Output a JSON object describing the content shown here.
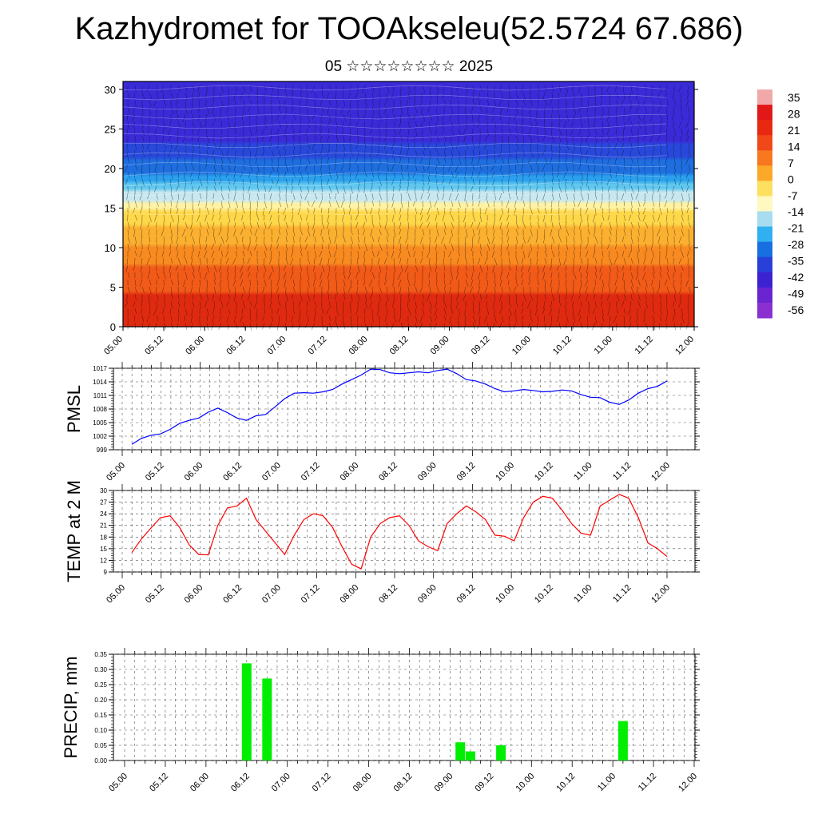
{
  "title": "Kazhydromet for TOOAkseleu(52.5724 67.686)",
  "subtitle": "05 ☆☆☆☆☆☆☆☆ 2025",
  "time_labels": [
    "05.00",
    "05.12",
    "06.00",
    "06.12",
    "07.00",
    "07.12",
    "08.00",
    "08.12",
    "09.00",
    "09.12",
    "10.00",
    "10.12",
    "11.00",
    "11.12",
    "12.00"
  ],
  "colorbar": {
    "labels": [
      "35",
      "28",
      "21",
      "14",
      "7",
      "0",
      "-7",
      "-14",
      "-21",
      "-28",
      "-35",
      "-42",
      "-49",
      "-56"
    ],
    "colors": [
      "#f2a8a8",
      "#e01818",
      "#e82810",
      "#f04818",
      "#f87820",
      "#fca828",
      "#fde060",
      "#fff8c0",
      "#a8dcf0",
      "#30b0f0",
      "#1870e0",
      "#2840d8",
      "#3c22d0",
      "#6a24d0",
      "#8a30d0"
    ]
  },
  "chart_data": [
    {
      "type": "heatmap",
      "title": "",
      "xlabel": "",
      "ylabel": "",
      "x": [
        "05.00",
        "05.12",
        "06.00",
        "06.12",
        "07.00",
        "07.12",
        "08.00",
        "08.12",
        "09.00",
        "09.12",
        "10.00",
        "10.12",
        "11.00",
        "11.12",
        "12.00"
      ],
      "ylim": [
        0,
        31
      ],
      "yticks": [
        0,
        5,
        10,
        15,
        20,
        25,
        30
      ],
      "description_values": "temperature by level, red near 0-10 (~20 to 35), yellow near 15, blue above 20 (to -56)",
      "levels": [
        0,
        5,
        10,
        15,
        20,
        25,
        30
      ],
      "temperature_profile": [
        28,
        24,
        12,
        -5,
        -35,
        -52,
        -50
      ]
    },
    {
      "type": "line",
      "title": "",
      "ylabel": "PMSL",
      "xlabel": "",
      "ylim": [
        999,
        1017
      ],
      "yticks": [
        999,
        1002,
        1005,
        1008,
        1011,
        1014,
        1017
      ],
      "x": [
        "05.00",
        "05.03",
        "05.06",
        "05.09",
        "05.12",
        "05.15",
        "05.18",
        "05.21",
        "06.00",
        "06.03",
        "06.06",
        "06.09",
        "06.12",
        "06.15",
        "06.18",
        "06.21",
        "07.00",
        "07.03",
        "07.06",
        "07.09",
        "07.12",
        "07.15",
        "07.18",
        "07.21",
        "08.00",
        "08.03",
        "08.06",
        "08.09",
        "08.12",
        "08.15",
        "08.18",
        "08.21",
        "09.00",
        "09.03",
        "09.06",
        "09.09",
        "09.12",
        "09.15",
        "09.18",
        "09.21",
        "10.00",
        "10.03",
        "10.06",
        "10.09",
        "10.12",
        "10.15",
        "10.18",
        "10.21",
        "11.00",
        "11.03",
        "11.06",
        "11.09",
        "11.12",
        "11.15",
        "11.18",
        "11.21",
        "12.00"
      ],
      "series": [
        {
          "name": "",
          "color": "#0000ff",
          "values": [
            1000.2,
            1001.5,
            1002.2,
            1002.5,
            1003.5,
            1004.8,
            1005.5,
            1006.0,
            1007.3,
            1008.2,
            1007.2,
            1006.0,
            1005.5,
            1006.5,
            1006.8,
            1008.5,
            1010.3,
            1011.5,
            1011.6,
            1011.5,
            1011.8,
            1012.3,
            1013.5,
            1014.5,
            1015.5,
            1016.8,
            1016.7,
            1016.0,
            1015.8,
            1016.0,
            1016.2,
            1016.0,
            1016.5,
            1016.8,
            1015.8,
            1014.5,
            1014.2,
            1013.5,
            1012.5,
            1011.8,
            1012.0,
            1012.3,
            1012.1,
            1011.8,
            1011.9,
            1012.2,
            1012.0,
            1011.2,
            1010.6,
            1010.5,
            1009.5,
            1009.0,
            1010.0,
            1011.5,
            1012.5,
            1013.0,
            1014.2
          ]
        }
      ]
    },
    {
      "type": "line",
      "title": "",
      "ylabel": "TEMP at 2 M",
      "xlabel": "",
      "ylim": [
        9,
        30
      ],
      "yticks": [
        9,
        12,
        15,
        18,
        21,
        24,
        27,
        30
      ],
      "x": [
        "05.00",
        "05.03",
        "05.06",
        "05.09",
        "05.12",
        "05.15",
        "05.18",
        "05.21",
        "06.00",
        "06.03",
        "06.06",
        "06.09",
        "06.12",
        "06.15",
        "06.18",
        "06.21",
        "07.00",
        "07.03",
        "07.06",
        "07.09",
        "07.12",
        "07.15",
        "07.18",
        "07.21",
        "08.00",
        "08.03",
        "08.06",
        "08.09",
        "08.12",
        "08.15",
        "08.18",
        "08.21",
        "09.00",
        "09.03",
        "09.06",
        "09.09",
        "09.12",
        "09.15",
        "09.18",
        "09.21",
        "10.00",
        "10.03",
        "10.06",
        "10.09",
        "10.12",
        "10.15",
        "10.18",
        "10.21",
        "11.00",
        "11.03",
        "11.06",
        "11.09",
        "11.12",
        "11.15",
        "11.18",
        "11.21",
        "12.00"
      ],
      "series": [
        {
          "name": "",
          "color": "#ff0000",
          "values": [
            14.0,
            17.5,
            20.3,
            23.0,
            23.5,
            20.5,
            16.0,
            13.5,
            13.4,
            21.0,
            25.5,
            26.0,
            28.0,
            22.5,
            19.5,
            16.5,
            13.5,
            18.5,
            22.5,
            24.0,
            23.5,
            20.5,
            15.5,
            11.0,
            9.8,
            18.0,
            21.5,
            23.0,
            23.5,
            21.0,
            17.0,
            15.5,
            14.5,
            21.5,
            24.0,
            26.0,
            24.5,
            22.5,
            18.5,
            18.2,
            17.0,
            23.0,
            27.0,
            28.5,
            28.0,
            25.0,
            21.5,
            19.0,
            18.5,
            26.0,
            27.5,
            29.0,
            28.0,
            23.0,
            16.5,
            15.0,
            13.0
          ]
        }
      ]
    },
    {
      "type": "bar",
      "title": "",
      "ylabel": "PRECIP, mm",
      "xlabel": "",
      "ylim": [
        0,
        0.35
      ],
      "yticks": [
        0.0,
        0.05,
        0.1,
        0.15,
        0.2,
        0.25,
        0.3,
        0.35
      ],
      "bar_color": "#00ee00",
      "categories": [
        "06.12",
        "06.18",
        "09.09",
        "09.12",
        "09.21",
        "11.03"
      ],
      "values": [
        0.32,
        0.27,
        0.06,
        0.03,
        0.05,
        0.13
      ],
      "bar_hour_offsets": [
        36,
        42,
        99,
        102,
        111,
        147
      ]
    }
  ]
}
